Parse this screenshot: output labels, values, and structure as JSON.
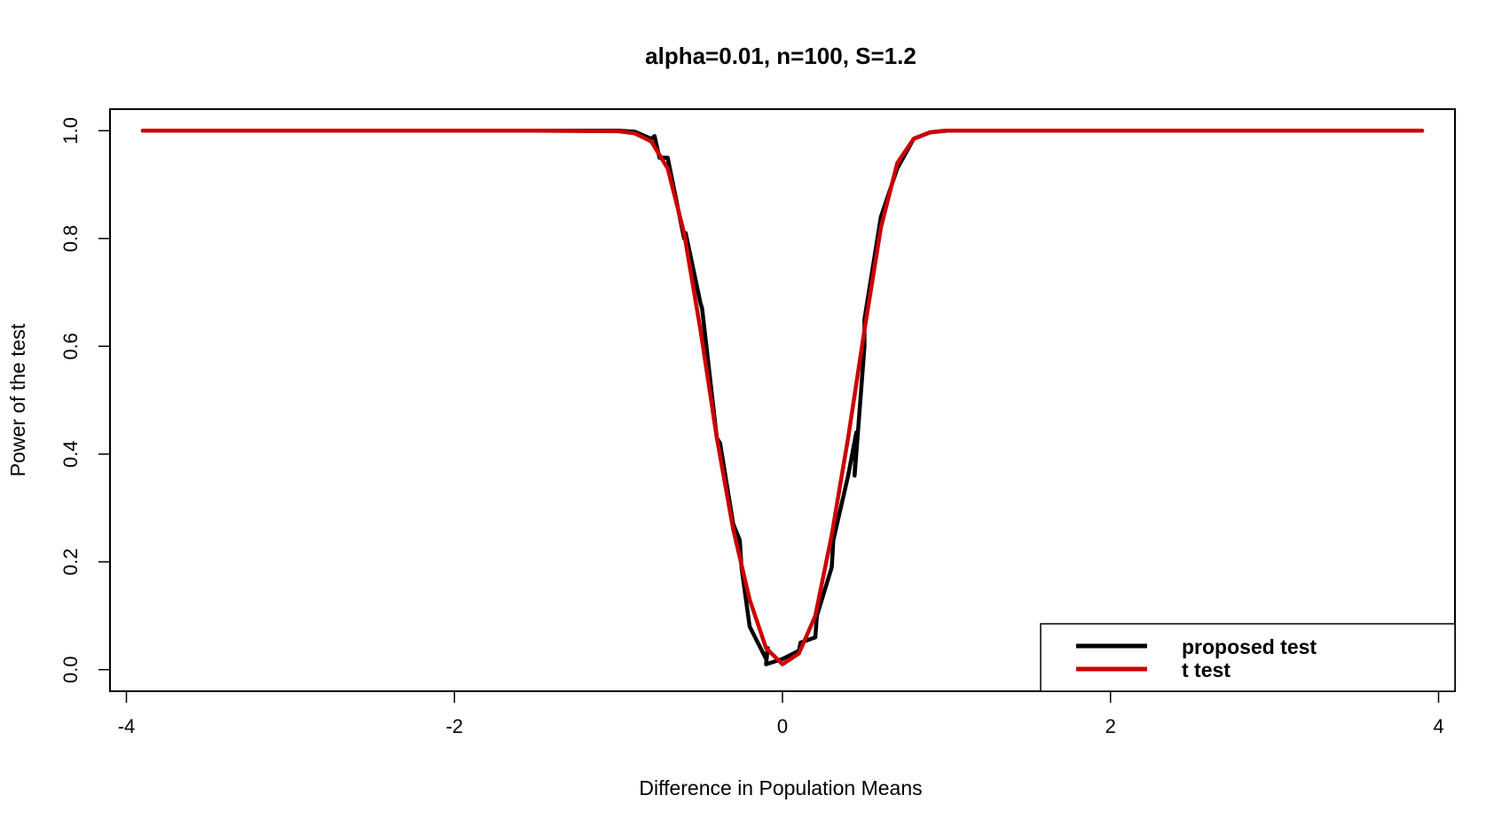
{
  "chart_data": {
    "type": "line",
    "title": "alpha=0.01, n=100, S=1.2",
    "xlabel": "Difference in Population Means",
    "ylabel": "Power of the test",
    "xlim": [
      -4.1,
      4.1
    ],
    "ylim": [
      -0.04,
      1.04
    ],
    "xticks": [
      -4,
      -2,
      0,
      2,
      4
    ],
    "yticks": [
      0.0,
      0.2,
      0.4,
      0.6,
      0.8,
      1.0
    ],
    "xtick_labels": [
      "-4",
      "-2",
      "0",
      "2",
      "4"
    ],
    "ytick_labels": [
      "0.0",
      "0.2",
      "0.4",
      "0.6",
      "0.8",
      "1.0"
    ],
    "legend_position": "bottom-right",
    "grid": false,
    "series": [
      {
        "name": "proposed test",
        "color": "#000000",
        "x": [
          -3.9,
          -1.5,
          -1.0,
          -0.9,
          -0.8,
          -0.78,
          -0.75,
          -0.7,
          -0.6,
          -0.59,
          -0.5,
          -0.49,
          -0.4,
          -0.38,
          -0.3,
          -0.26,
          -0.25,
          -0.2,
          -0.1,
          -0.09,
          -0.1,
          0.0,
          0.1,
          0.11,
          0.2,
          0.21,
          0.3,
          0.31,
          0.4,
          0.45,
          0.44,
          0.5,
          0.5,
          0.6,
          0.7,
          0.8,
          0.9,
          1.0,
          1.5,
          3.9
        ],
        "y": [
          1.0,
          1.0,
          1.0,
          0.998,
          0.985,
          0.99,
          0.95,
          0.95,
          0.8,
          0.81,
          0.68,
          0.67,
          0.43,
          0.42,
          0.27,
          0.24,
          0.19,
          0.08,
          0.02,
          0.04,
          0.01,
          0.02,
          0.035,
          0.05,
          0.06,
          0.1,
          0.19,
          0.24,
          0.36,
          0.44,
          0.36,
          0.6,
          0.65,
          0.84,
          0.93,
          0.985,
          0.997,
          1.0,
          1.0,
          1.0
        ]
      },
      {
        "name": "t test",
        "color": "#cc0000",
        "x": [
          -3.9,
          -1.5,
          -1.0,
          -0.9,
          -0.8,
          -0.7,
          -0.6,
          -0.5,
          -0.4,
          -0.3,
          -0.2,
          -0.1,
          0.0,
          0.1,
          0.2,
          0.3,
          0.4,
          0.5,
          0.6,
          0.7,
          0.8,
          0.9,
          1.0,
          1.5,
          3.9
        ],
        "y": [
          1.0,
          1.0,
          0.999,
          0.995,
          0.98,
          0.93,
          0.81,
          0.63,
          0.43,
          0.26,
          0.13,
          0.04,
          0.01,
          0.03,
          0.1,
          0.25,
          0.43,
          0.63,
          0.82,
          0.94,
          0.985,
          0.997,
          1.0,
          1.0,
          1.0
        ]
      }
    ]
  }
}
